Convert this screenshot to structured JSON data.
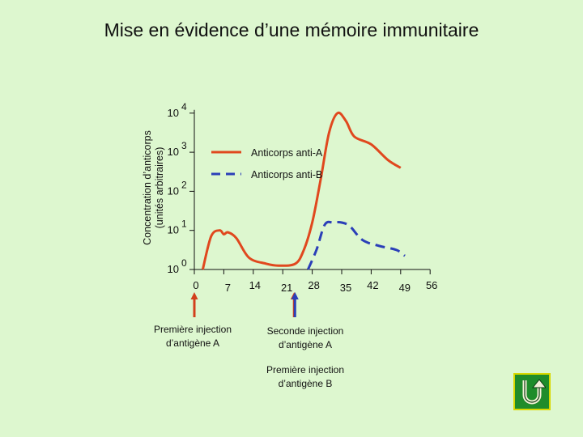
{
  "title": "Mise en évidence d’une mémoire immunitaire",
  "colors": {
    "background": "#ddf7cf",
    "anti_a": "#e0481e",
    "anti_b": "#2b3fb8",
    "arrow_red": "#d2401c",
    "arrow_blue": "#2b3fb8",
    "nav_green": "#1f8c2a",
    "nav_border": "#d8d800"
  },
  "annotations": {
    "first_injection_a": "Première injection d’antigène A",
    "second_injection_a": "Seconde injection d’antigène A",
    "first_injection_b": "Première injection d’antigène B"
  },
  "nav": {
    "icon": "u-turn-arrow-icon"
  },
  "chart_data": {
    "type": "line",
    "title": "",
    "ylabel": "Concentration d’anticorps (unités arbitraires)",
    "xlabel": "",
    "y_scale": "log",
    "y_ticks": [
      {
        "base": "10",
        "exp": "0",
        "value": 0
      },
      {
        "base": "10",
        "exp": "1",
        "value": 1
      },
      {
        "base": "10",
        "exp": "2",
        "value": 2
      },
      {
        "base": "10",
        "exp": "3",
        "value": 3
      },
      {
        "base": "10",
        "exp": "4",
        "value": 4
      }
    ],
    "x_ticks": [
      "0",
      "7",
      "14",
      "21",
      "28",
      "35",
      "42",
      "49",
      "56"
    ],
    "xlim": [
      0,
      56
    ],
    "ylim": [
      0,
      4
    ],
    "legend": {
      "placement": "top-right",
      "entries": [
        "Anticorps anti-A",
        "Anticorps anti-B"
      ]
    },
    "series": [
      {
        "name": "Anticorps anti-A",
        "style": "solid",
        "points": [
          [
            2,
            0
          ],
          [
            4,
            0.85
          ],
          [
            6,
            1.0
          ],
          [
            7,
            0.9
          ],
          [
            8,
            0.95
          ],
          [
            10,
            0.8
          ],
          [
            13,
            0.3
          ],
          [
            17,
            0.15
          ],
          [
            20,
            0.1
          ],
          [
            24,
            0.15
          ],
          [
            26,
            0.5
          ],
          [
            28,
            1.2
          ],
          [
            30,
            2.3
          ],
          [
            32,
            3.5
          ],
          [
            34,
            4.0
          ],
          [
            36,
            3.8
          ],
          [
            38,
            3.4
          ],
          [
            42,
            3.2
          ],
          [
            46,
            2.8
          ],
          [
            49,
            2.6
          ]
        ]
      },
      {
        "name": "Anticorps anti-B",
        "style": "dashed",
        "points": [
          [
            27,
            0
          ],
          [
            29,
            0.5
          ],
          [
            31,
            1.15
          ],
          [
            33,
            1.2
          ],
          [
            35,
            1.2
          ],
          [
            37,
            1.1
          ],
          [
            40,
            0.75
          ],
          [
            44,
            0.6
          ],
          [
            48,
            0.5
          ],
          [
            50,
            0.35
          ]
        ]
      }
    ],
    "injections": [
      {
        "day": 0,
        "series": "anti-A",
        "label_key": "first_injection_a"
      },
      {
        "day": 23.7,
        "series": "anti-A",
        "label_key": "second_injection_a"
      },
      {
        "day": 23.9,
        "series": "anti-B",
        "label_key": "first_injection_b"
      }
    ]
  }
}
